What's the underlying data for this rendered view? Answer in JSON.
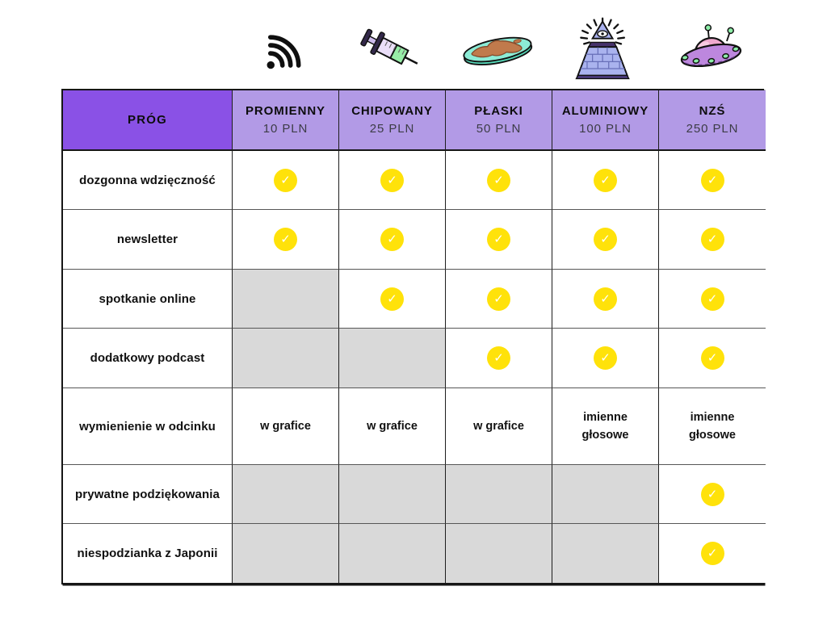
{
  "icons": {
    "check_glyph": "✓",
    "tier_icons": [
      "wifi-signal-icon",
      "syringe-icon",
      "flat-earth-icon",
      "illuminati-pyramid-icon",
      "ufo-icon"
    ]
  },
  "colors": {
    "header_dark_purple": "#8a51e6",
    "header_light_purple": "#b29ae6",
    "unavailable_gray": "#d9d9d9",
    "check_yellow": "#ffe20a",
    "check_mark": "#ffffff",
    "border_dark": "#161616"
  },
  "table": {
    "header": {
      "first_col": "PRÓG",
      "tiers": [
        {
          "name": "PROMIENNY",
          "price": "10 PLN"
        },
        {
          "name": "CHIPOWANY",
          "price": "25 PLN"
        },
        {
          "name": "PŁASKI",
          "price": "50 PLN"
        },
        {
          "name": "ALUMINIOWY",
          "price": "100 PLN"
        },
        {
          "name": "NZŚ",
          "price": "250 PLN"
        }
      ]
    },
    "rows": [
      {
        "label": "dozgonna wdzięczność",
        "cells": [
          "check",
          "check",
          "check",
          "check",
          "check"
        ]
      },
      {
        "label": "newsletter",
        "cells": [
          "check",
          "check",
          "check",
          "check",
          "check"
        ]
      },
      {
        "label": "spotkanie online",
        "cells": [
          "empty",
          "check",
          "check",
          "check",
          "check"
        ]
      },
      {
        "label": "dodatkowy podcast",
        "cells": [
          "empty",
          "empty",
          "check",
          "check",
          "check"
        ]
      },
      {
        "label": "wymienienie w odcinku",
        "cells": [
          "w grafice",
          "w grafice",
          "w grafice",
          "imienne\ngłosowe",
          "imienne\ngłosowe"
        ]
      },
      {
        "label": "prywatne podziękowania",
        "cells": [
          "empty",
          "empty",
          "empty",
          "empty",
          "check"
        ]
      },
      {
        "label": "niespodzianka z Japonii",
        "cells": [
          "empty",
          "empty",
          "empty",
          "empty",
          "check"
        ]
      }
    ]
  },
  "chart_data": {
    "type": "table",
    "title": "Progi wsparcia (patron tiers)",
    "columns": [
      "PRÓG",
      "PROMIENNY 10 PLN",
      "CHIPOWANY 25 PLN",
      "PŁASKI 50 PLN",
      "ALUMINIOWY 100 PLN",
      "NZŚ 250 PLN"
    ],
    "rows": [
      [
        "dozgonna wdzięczność",
        true,
        true,
        true,
        true,
        true
      ],
      [
        "newsletter",
        true,
        true,
        true,
        true,
        true
      ],
      [
        "spotkanie online",
        false,
        true,
        true,
        true,
        true
      ],
      [
        "dodatkowy podcast",
        false,
        false,
        true,
        true,
        true
      ],
      [
        "wymienienie w odcinku",
        "w grafice",
        "w grafice",
        "w grafice",
        "imienne głosowe",
        "imienne głosowe"
      ],
      [
        "prywatne podziękowania",
        false,
        false,
        false,
        false,
        true
      ],
      [
        "niespodzianka z Japonii",
        false,
        false,
        false,
        false,
        true
      ]
    ],
    "legend_position": "none",
    "grid": true
  }
}
